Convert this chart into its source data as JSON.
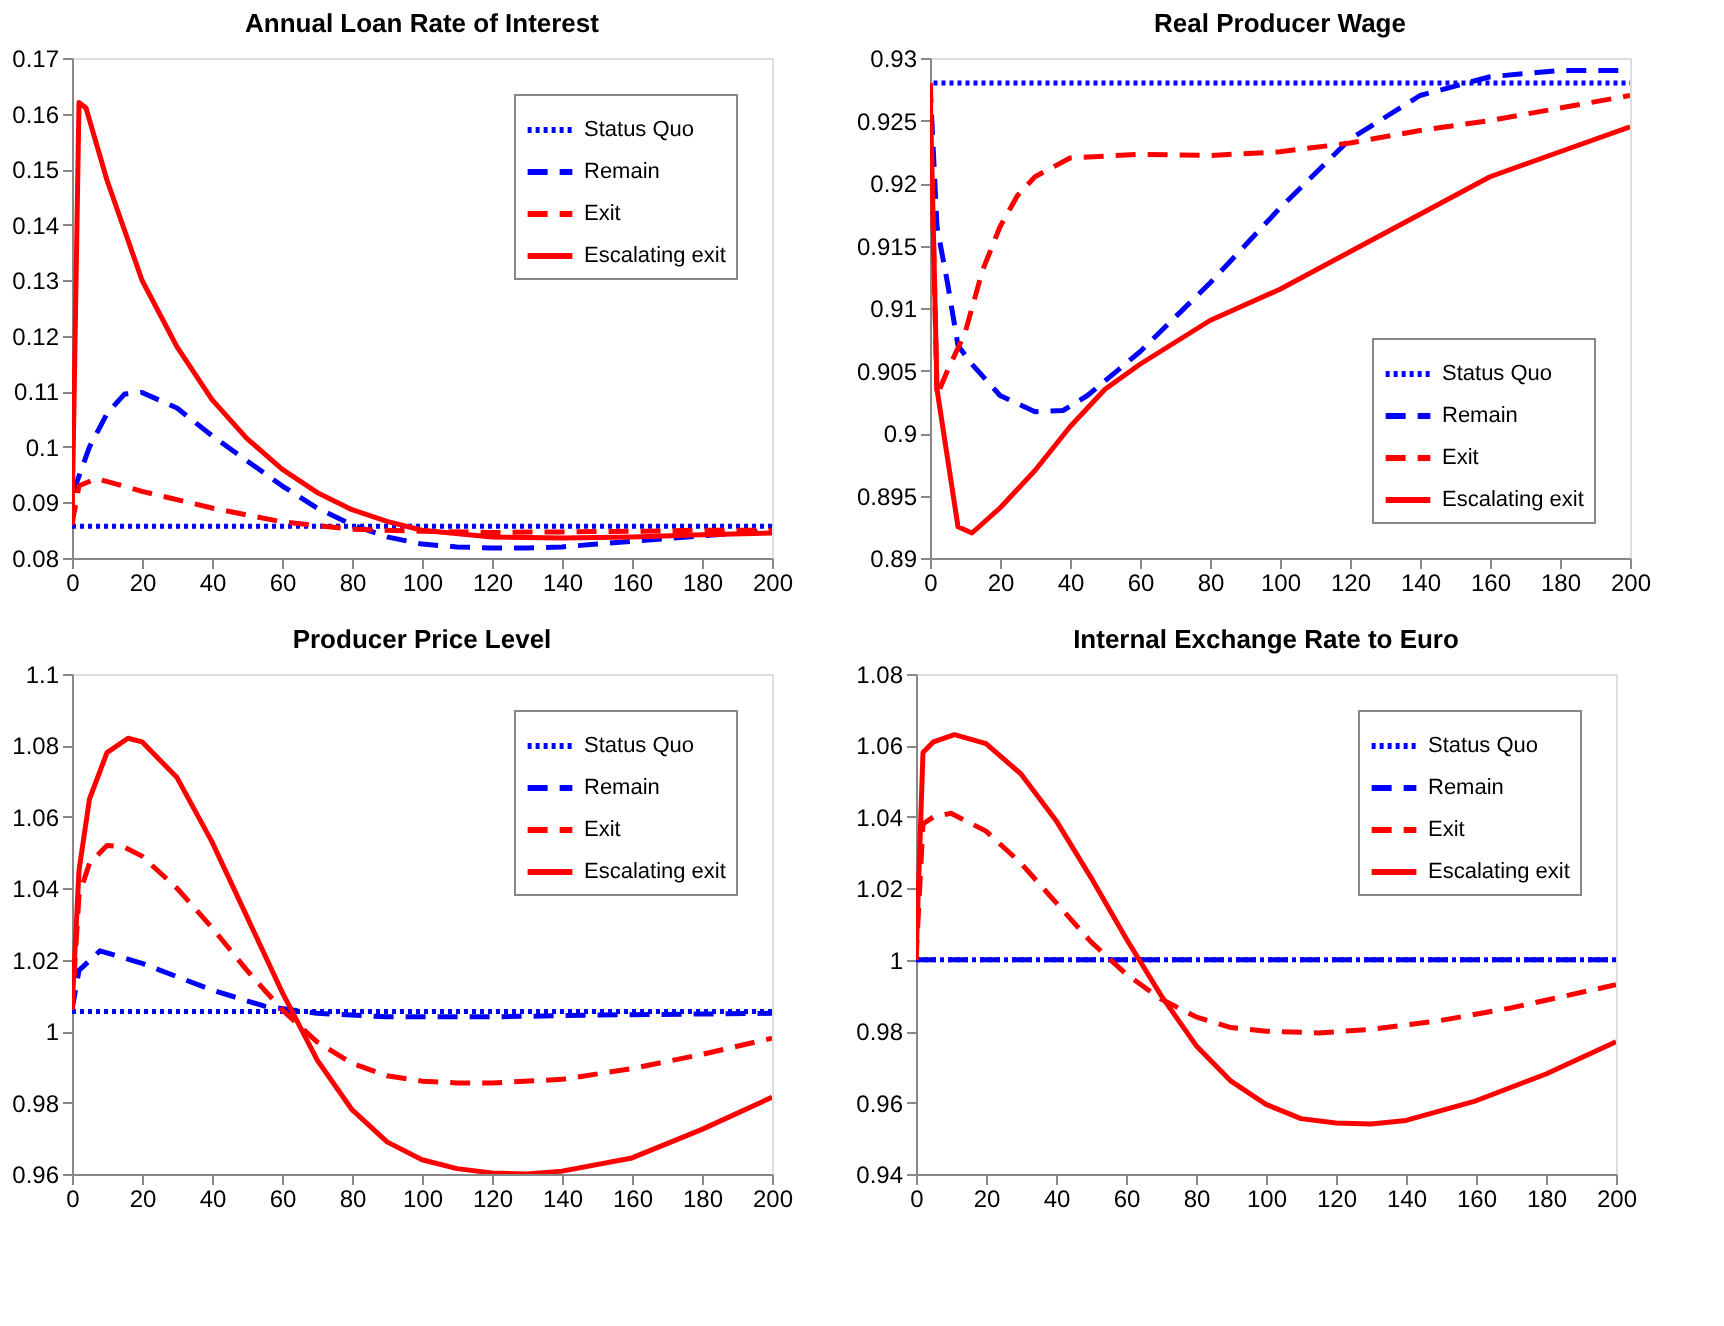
{
  "chart_data": [
    {
      "type": "line",
      "title": "Annual Loan Rate of Interest",
      "xlim": [
        0,
        200
      ],
      "xticks": [
        0,
        20,
        40,
        60,
        80,
        100,
        120,
        140,
        160,
        180,
        200
      ],
      "ylim": [
        0.08,
        0.17
      ],
      "yticks": [
        0.08,
        0.09,
        0.1,
        0.11,
        0.12,
        0.13,
        0.14,
        0.15,
        0.16,
        0.17
      ],
      "grid": false,
      "legend": "top right",
      "series": [
        {
          "name": "Status Quo",
          "color": "#0000ff",
          "line_style": "dotted",
          "x": [
            0,
            200
          ],
          "values": [
            0.0857,
            0.0857
          ]
        },
        {
          "name": "Remain",
          "color": "#0000ff",
          "line_style": "dashed",
          "x": [
            0,
            1,
            5,
            10,
            15,
            20,
            30,
            40,
            50,
            60,
            70,
            80,
            90,
            100,
            110,
            120,
            130,
            140,
            150,
            160,
            170,
            180,
            190,
            200
          ],
          "values": [
            0.086,
            0.093,
            0.1,
            0.106,
            0.1095,
            0.1098,
            0.107,
            0.102,
            0.0975,
            0.093,
            0.089,
            0.086,
            0.0838,
            0.0825,
            0.082,
            0.0818,
            0.0818,
            0.082,
            0.0825,
            0.083,
            0.0835,
            0.084,
            0.0845,
            0.085
          ]
        },
        {
          "name": "Exit",
          "color": "#ff0000",
          "line_style": "dashed",
          "x": [
            0,
            2,
            7,
            20,
            40,
            60,
            80,
            100,
            120,
            140,
            160,
            180,
            200
          ],
          "values": [
            0.086,
            0.093,
            0.0943,
            0.092,
            0.089,
            0.0865,
            0.0852,
            0.0848,
            0.0846,
            0.0847,
            0.0848,
            0.085,
            0.085
          ]
        },
        {
          "name": "Escalating exit",
          "color": "#ff0000",
          "line_style": "solid",
          "x": [
            0,
            2,
            4,
            10,
            20,
            30,
            40,
            50,
            60,
            70,
            80,
            90,
            100,
            120,
            140,
            160,
            180,
            200
          ],
          "values": [
            0.086,
            0.162,
            0.161,
            0.148,
            0.13,
            0.118,
            0.1085,
            0.1015,
            0.096,
            0.0918,
            0.0887,
            0.0866,
            0.085,
            0.0838,
            0.0836,
            0.0838,
            0.0842,
            0.0845
          ]
        }
      ]
    },
    {
      "type": "line",
      "title": "Real Producer Wage",
      "xlim": [
        0,
        200
      ],
      "xticks": [
        0,
        20,
        40,
        60,
        80,
        100,
        120,
        140,
        160,
        180,
        200
      ],
      "ylim": [
        0.89,
        0.93
      ],
      "yticks": [
        0.89,
        0.895,
        0.9,
        0.905,
        0.91,
        0.915,
        0.92,
        0.925,
        0.93
      ],
      "grid": false,
      "legend": "bottom right",
      "series": [
        {
          "name": "Status Quo",
          "color": "#0000ff",
          "line_style": "dotted",
          "x": [
            1,
            200
          ],
          "values": [
            0.928,
            0.928
          ]
        },
        {
          "name": "Remain",
          "color": "#0000ff",
          "line_style": "dashed",
          "x": [
            0,
            2,
            5,
            8,
            12,
            20,
            30,
            38,
            45,
            60,
            80,
            100,
            120,
            140,
            160,
            180,
            190,
            200
          ],
          "values": [
            0.928,
            0.9165,
            0.912,
            0.907,
            0.9055,
            0.903,
            0.9017,
            0.9018,
            0.903,
            0.9065,
            0.912,
            0.918,
            0.9235,
            0.927,
            0.9285,
            0.929,
            0.929,
            0.929
          ]
        },
        {
          "name": "Exit",
          "color": "#ff0000",
          "line_style": "dashed",
          "x": [
            0,
            2,
            5,
            10,
            15,
            20,
            25,
            30,
            40,
            60,
            80,
            100,
            120,
            140,
            160,
            180,
            200
          ],
          "values": [
            0.928,
            0.903,
            0.905,
            0.908,
            0.913,
            0.9165,
            0.919,
            0.9205,
            0.922,
            0.9223,
            0.9222,
            0.9225,
            0.9232,
            0.9242,
            0.925,
            0.926,
            0.927
          ]
        },
        {
          "name": "Escalating exit",
          "color": "#ff0000",
          "line_style": "solid",
          "x": [
            0,
            2,
            8,
            12,
            20,
            30,
            40,
            50,
            60,
            80,
            100,
            120,
            140,
            160,
            180,
            200
          ],
          "values": [
            0.928,
            0.9035,
            0.8925,
            0.892,
            0.894,
            0.897,
            0.9005,
            0.9035,
            0.9055,
            0.909,
            0.9115,
            0.9145,
            0.9175,
            0.9205,
            0.9225,
            0.9245
          ]
        }
      ]
    },
    {
      "type": "line",
      "title": "Producer Price Level",
      "xlim": [
        0,
        200
      ],
      "xticks": [
        0,
        20,
        40,
        60,
        80,
        100,
        120,
        140,
        160,
        180,
        200
      ],
      "ylim": [
        0.96,
        1.1
      ],
      "yticks": [
        0.96,
        0.98,
        1,
        1.02,
        1.04,
        1.06,
        1.08,
        1.1
      ],
      "grid": false,
      "legend": "top right",
      "series": [
        {
          "name": "Status Quo",
          "color": "#0000ff",
          "line_style": "dotted",
          "x": [
            0,
            200
          ],
          "values": [
            1.0055,
            1.0055
          ]
        },
        {
          "name": "Remain",
          "color": "#0000ff",
          "line_style": "dashed",
          "x": [
            0,
            2,
            8,
            20,
            40,
            55,
            70,
            90,
            120,
            150,
            200
          ],
          "values": [
            1.006,
            1.017,
            1.0225,
            1.019,
            1.0115,
            1.007,
            1.005,
            1.004,
            1.004,
            1.0045,
            1.005
          ]
        },
        {
          "name": "Exit",
          "color": "#ff0000",
          "line_style": "dashed",
          "x": [
            0,
            2,
            5,
            10,
            15,
            20,
            30,
            40,
            50,
            60,
            70,
            80,
            90,
            100,
            110,
            120,
            140,
            160,
            180,
            200
          ],
          "values": [
            1.006,
            1.038,
            1.047,
            1.052,
            1.0515,
            1.049,
            1.04,
            1.029,
            1.017,
            1.006,
            0.997,
            0.991,
            0.9875,
            0.986,
            0.9855,
            0.9855,
            0.9865,
            0.9895,
            0.9935,
            0.998
          ]
        },
        {
          "name": "Escalating exit",
          "color": "#ff0000",
          "line_style": "solid",
          "x": [
            0,
            2,
            5,
            10,
            16,
            20,
            30,
            40,
            50,
            60,
            70,
            80,
            90,
            100,
            110,
            120,
            130,
            140,
            160,
            180,
            200
          ],
          "values": [
            1.006,
            1.045,
            1.065,
            1.078,
            1.082,
            1.081,
            1.071,
            1.053,
            1.032,
            1.011,
            0.992,
            0.978,
            0.969,
            0.964,
            0.9615,
            0.9603,
            0.96,
            0.9608,
            0.9645,
            0.9725,
            0.9815
          ]
        }
      ]
    },
    {
      "type": "line",
      "title": "Internal Exchange Rate to Euro",
      "xlim": [
        0,
        200
      ],
      "xticks": [
        0,
        20,
        40,
        60,
        80,
        100,
        120,
        140,
        160,
        180,
        200
      ],
      "ylim": [
        0.94,
        1.08
      ],
      "yticks": [
        0.94,
        0.96,
        0.98,
        1,
        1.02,
        1.04,
        1.06,
        1.08
      ],
      "grid": false,
      "legend": "top right",
      "series": [
        {
          "name": "Status Quo",
          "color": "#0000ff",
          "line_style": "dotted",
          "x": [
            0,
            200
          ],
          "values": [
            1.0,
            1.0
          ]
        },
        {
          "name": "Remain",
          "color": "#0000ff",
          "line_style": "dashed",
          "x": [
            0,
            200
          ],
          "values": [
            1.0,
            1.0
          ]
        },
        {
          "name": "Exit",
          "color": "#ff0000",
          "line_style": "dashed",
          "x": [
            0,
            2,
            5,
            10,
            20,
            30,
            40,
            50,
            60,
            70,
            80,
            90,
            100,
            115,
            130,
            150,
            170,
            200
          ],
          "values": [
            1.0,
            1.038,
            1.04,
            1.041,
            1.036,
            1.027,
            1.016,
            1.005,
            0.996,
            0.989,
            0.984,
            0.981,
            0.98,
            0.9795,
            0.9805,
            0.983,
            0.9865,
            0.993
          ]
        },
        {
          "name": "Escalating exit",
          "color": "#ff0000",
          "line_style": "solid",
          "x": [
            0,
            2,
            5,
            11,
            20,
            30,
            40,
            50,
            60,
            70,
            80,
            90,
            100,
            110,
            120,
            130,
            140,
            160,
            180,
            200
          ],
          "values": [
            1.0,
            1.058,
            1.061,
            1.063,
            1.0605,
            1.052,
            1.039,
            1.023,
            1.006,
            0.99,
            0.976,
            0.966,
            0.9595,
            0.9555,
            0.9543,
            0.954,
            0.955,
            0.9605,
            0.968,
            0.977
          ]
        }
      ]
    }
  ]
}
